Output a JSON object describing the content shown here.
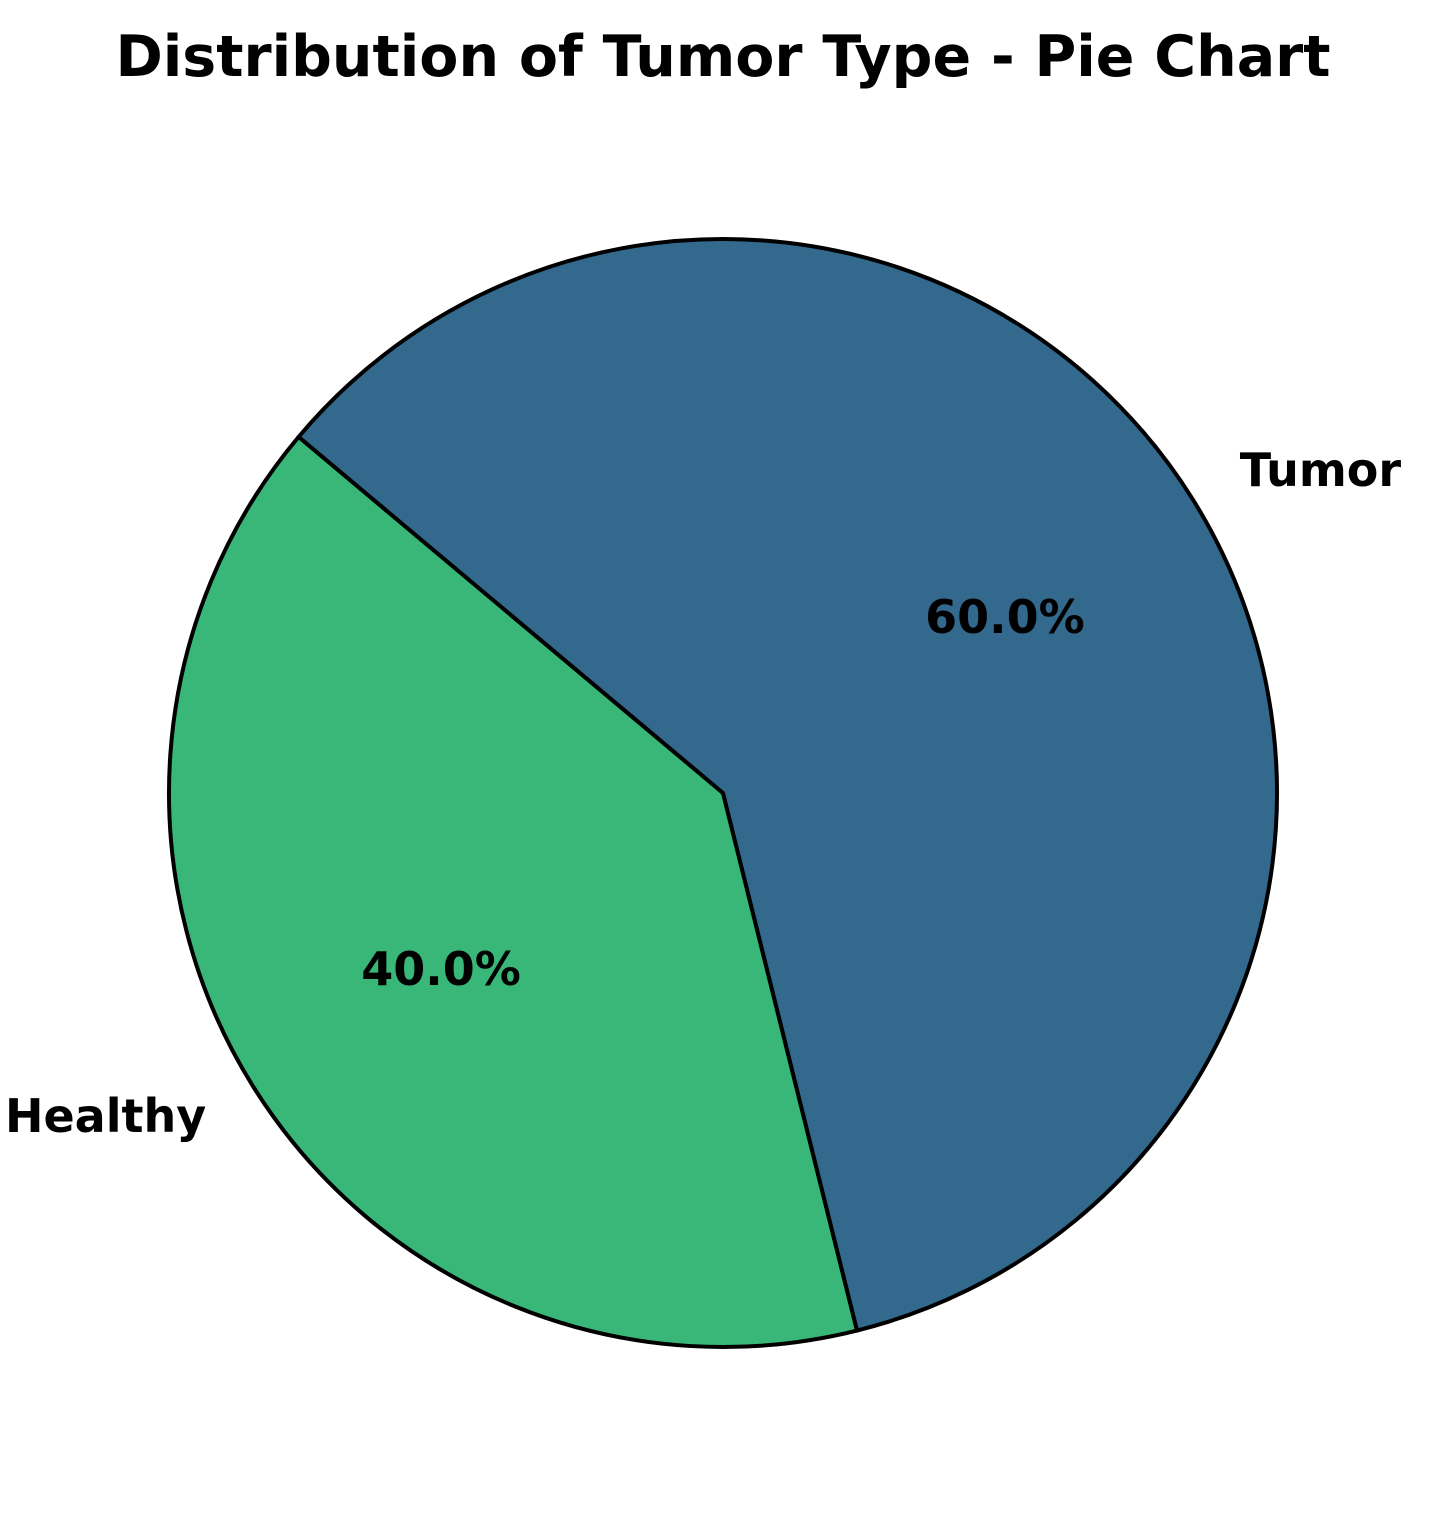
{
  "chart_data": {
    "type": "pie",
    "title": "Distribution of Tumor Type - Pie Chart",
    "categories": [
      "Healthy",
      "Tumor"
    ],
    "values": [
      40.0,
      60.0
    ],
    "percent_labels": [
      "40.0%",
      "60.0%"
    ],
    "colors": [
      "#38b779",
      "#32698d"
    ],
    "edge_color": "#000000",
    "start_angle_deg": 140,
    "direction": "counterclockwise",
    "legend": "none"
  }
}
